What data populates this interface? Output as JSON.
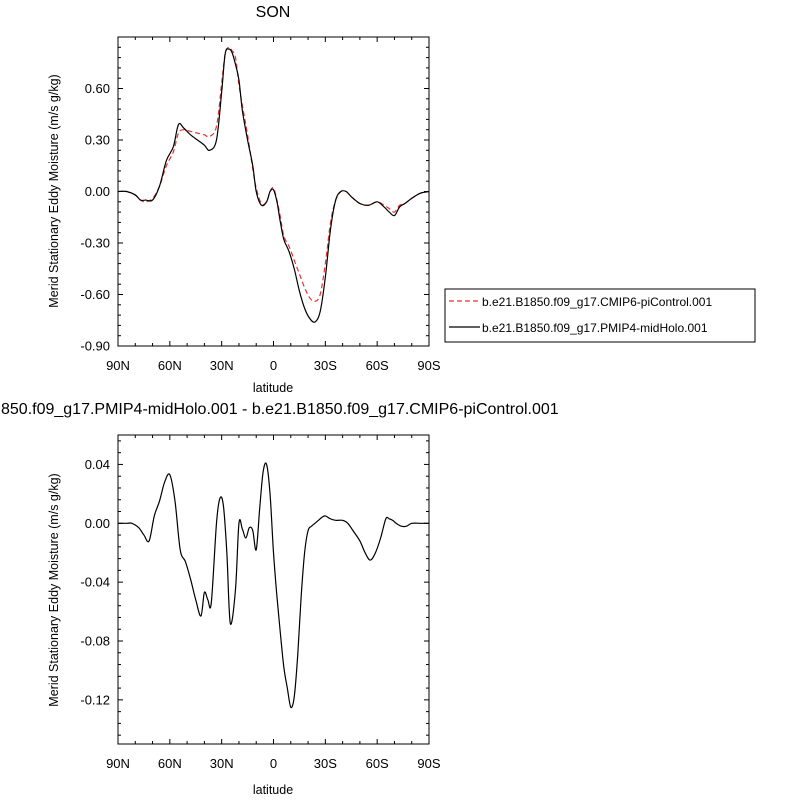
{
  "chart_data": [
    {
      "type": "line",
      "title": "SON",
      "xlabel": "latitude",
      "ylabel": "Merid Stationary Eddy Moisture (m/s g/kg)",
      "xlim": [
        90,
        -90
      ],
      "ylim": [
        -0.9,
        0.9
      ],
      "x_ticks": [
        90,
        60,
        30,
        0,
        -30,
        -60,
        -90
      ],
      "x_tick_labels": [
        "90N",
        "60N",
        "30N",
        "0",
        "30S",
        "60S",
        "90S"
      ],
      "y_ticks": [
        -0.9,
        -0.6,
        -0.3,
        0.0,
        0.3,
        0.6
      ],
      "y_tick_labels": [
        "-0.90",
        "-0.60",
        "-0.30",
        "0.00",
        "0.30",
        "0.60"
      ],
      "legend_placement": "right",
      "series": [
        {
          "name": "b.e21.B1850.f09_g17.CMIP6-piControl.001",
          "color": "#e8322e",
          "dash": "dashed",
          "x": [
            90,
            85,
            80,
            77,
            74,
            70,
            66,
            62,
            58,
            55,
            52,
            48,
            44,
            40,
            37,
            33,
            30,
            28,
            26,
            24,
            22,
            20,
            18,
            15,
            12,
            10,
            7,
            4,
            2,
            0,
            -2,
            -4,
            -6,
            -9,
            -12,
            -15,
            -18,
            -21,
            -24,
            -27,
            -30,
            -33,
            -36,
            -39,
            -42,
            -45,
            -50,
            -55,
            -60,
            -64,
            -67,
            -70,
            -73,
            -76,
            -80,
            -85,
            -90
          ],
          "y": [
            0.0,
            0.0,
            -0.02,
            -0.05,
            -0.06,
            -0.04,
            0.03,
            0.15,
            0.23,
            0.34,
            0.36,
            0.35,
            0.34,
            0.33,
            0.32,
            0.38,
            0.63,
            0.8,
            0.84,
            0.82,
            0.78,
            0.62,
            0.5,
            0.33,
            0.13,
            0.02,
            -0.07,
            -0.06,
            0.0,
            0.02,
            -0.05,
            -0.15,
            -0.26,
            -0.32,
            -0.4,
            -0.48,
            -0.56,
            -0.62,
            -0.64,
            -0.6,
            -0.42,
            -0.18,
            -0.05,
            0.0,
            0.0,
            -0.03,
            -0.07,
            -0.08,
            -0.06,
            -0.08,
            -0.1,
            -0.12,
            -0.08,
            -0.07,
            -0.04,
            -0.01,
            0.0
          ]
        },
        {
          "name": "b.e21.B1850.f09_g17.PMIP4-midHolo.001",
          "color": "#000000",
          "dash": "solid",
          "x": [
            90,
            85,
            80,
            77,
            74,
            70,
            66,
            62,
            58,
            55,
            52,
            48,
            44,
            40,
            37,
            33,
            30,
            28,
            26,
            24,
            22,
            20,
            18,
            15,
            12,
            10,
            7,
            4,
            2,
            0,
            -2,
            -4,
            -6,
            -9,
            -12,
            -15,
            -18,
            -21,
            -24,
            -27,
            -30,
            -33,
            -36,
            -39,
            -42,
            -45,
            -50,
            -55,
            -60,
            -64,
            -67,
            -70,
            -73,
            -76,
            -80,
            -85,
            -90
          ],
          "y": [
            0.0,
            0.0,
            -0.02,
            -0.05,
            -0.05,
            -0.05,
            0.03,
            0.18,
            0.26,
            0.39,
            0.37,
            0.33,
            0.3,
            0.27,
            0.24,
            0.3,
            0.58,
            0.8,
            0.83,
            0.81,
            0.74,
            0.65,
            0.47,
            0.3,
            0.15,
            0.0,
            -0.08,
            -0.06,
            0.0,
            0.01,
            -0.06,
            -0.18,
            -0.28,
            -0.35,
            -0.45,
            -0.58,
            -0.68,
            -0.74,
            -0.76,
            -0.7,
            -0.5,
            -0.22,
            -0.05,
            0.0,
            0.0,
            -0.03,
            -0.07,
            -0.08,
            -0.06,
            -0.09,
            -0.12,
            -0.14,
            -0.09,
            -0.07,
            -0.04,
            -0.01,
            0.0
          ]
        }
      ]
    },
    {
      "type": "line",
      "title": "850.f09_g17.PMIP4-midHolo.001 - b.e21.B1850.f09_g17.CMIP6-piControl.001",
      "xlabel": "latitude",
      "ylabel": "Merid Stationary Eddy Moisture (m/s g/kg)",
      "xlim": [
        90,
        -90
      ],
      "ylim": [
        -0.15,
        0.06
      ],
      "x_ticks": [
        90,
        60,
        30,
        0,
        -30,
        -60,
        -90
      ],
      "x_tick_labels": [
        "90N",
        "60N",
        "30N",
        "0",
        "30S",
        "60S",
        "90S"
      ],
      "y_ticks": [
        -0.12,
        -0.08,
        -0.04,
        0.0,
        0.04
      ],
      "y_tick_labels": [
        "-0.12",
        "-0.08",
        "-0.04",
        "0.00",
        "0.04"
      ],
      "series": [
        {
          "color": "#000000",
          "x": [
            90,
            85,
            82,
            78,
            75,
            72,
            69,
            66,
            63,
            60,
            57,
            54,
            51,
            48,
            45,
            42,
            40,
            38,
            36,
            33,
            31,
            29,
            27,
            25,
            22,
            20,
            18,
            16,
            14,
            12,
            10,
            8,
            6,
            4,
            2,
            0,
            -2,
            -4,
            -6,
            -8,
            -10,
            -12,
            -14,
            -16,
            -18,
            -20,
            -22,
            -24,
            -26,
            -28,
            -30,
            -33,
            -36,
            -40,
            -43,
            -46,
            -50,
            -53,
            -56,
            -59,
            -62,
            -65,
            -67,
            -69,
            -71,
            -74,
            -77,
            -80,
            -85,
            -90
          ],
          "x_note": "",
          "y": [
            0.0,
            0.0,
            0.0,
            -0.003,
            -0.008,
            -0.012,
            0.005,
            0.015,
            0.028,
            0.033,
            0.015,
            -0.018,
            -0.026,
            -0.038,
            -0.052,
            -0.063,
            -0.047,
            -0.052,
            -0.054,
            0.0,
            0.017,
            0.012,
            -0.02,
            -0.068,
            -0.045,
            0.0,
            -0.004,
            -0.01,
            -0.003,
            -0.005,
            -0.018,
            0.01,
            0.035,
            0.04,
            0.02,
            -0.02,
            -0.05,
            -0.075,
            -0.098,
            -0.112,
            -0.125,
            -0.118,
            -0.09,
            -0.05,
            -0.02,
            -0.005,
            -0.002,
            0.0,
            0.002,
            0.004,
            0.005,
            0.003,
            0.002,
            0.002,
            0.0,
            -0.005,
            -0.012,
            -0.02,
            -0.025,
            -0.02,
            -0.01,
            0.003,
            0.003,
            0.002,
            0.0,
            -0.002,
            -0.002,
            0.0,
            0.0,
            0.0
          ]
        }
      ]
    }
  ]
}
